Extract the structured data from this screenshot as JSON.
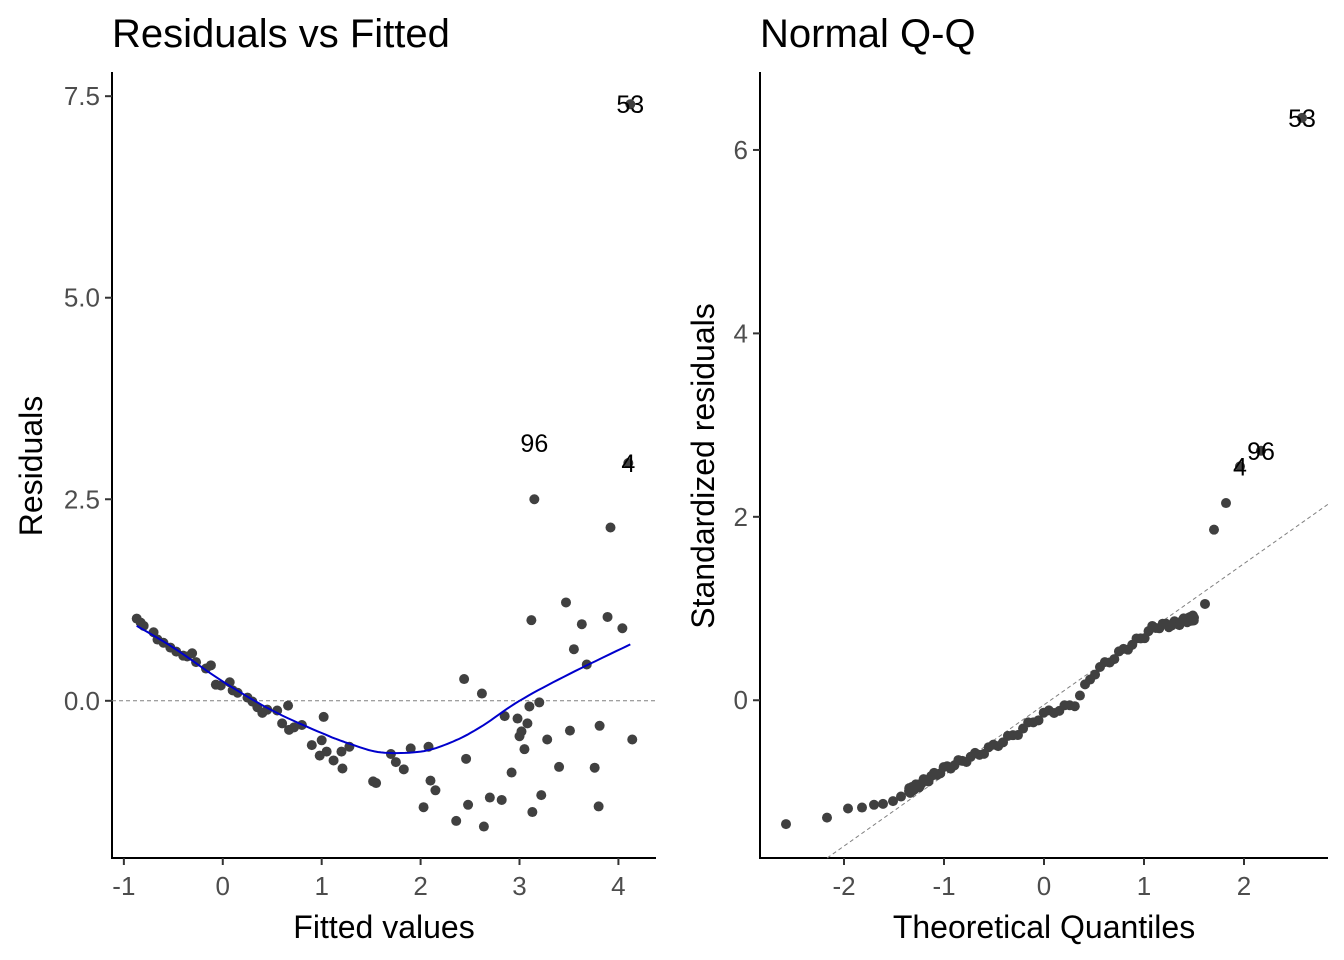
{
  "chart_data": [
    {
      "type": "scatter",
      "title": "Residuals vs Fitted",
      "xlabel": "Fitted values",
      "ylabel": "Residuals",
      "xlim": [
        -1.12,
        4.38
      ],
      "ylim": [
        -1.95,
        7.8
      ],
      "xticks": [
        -1,
        0,
        1,
        2,
        3,
        4
      ],
      "xtick_labels": [
        "-1",
        "0",
        "1",
        "2",
        "3",
        "4"
      ],
      "yticks": [
        0,
        2.5,
        5,
        7.5
      ],
      "ytick_labels": [
        "0.0",
        "2.5",
        "5.0",
        "7.5"
      ],
      "grid": false,
      "reference_line": {
        "y": 0,
        "style": "dashed",
        "color": "#808080"
      },
      "point_color": "#404040",
      "smooth_color": "#0000cc",
      "points": [
        [
          -0.87,
          1.02
        ],
        [
          -0.83,
          0.97
        ],
        [
          -0.8,
          0.93
        ],
        [
          -0.7,
          0.85
        ],
        [
          -0.66,
          0.76
        ],
        [
          -0.6,
          0.72
        ],
        [
          -0.53,
          0.66
        ],
        [
          -0.47,
          0.61
        ],
        [
          -0.4,
          0.56
        ],
        [
          -0.36,
          0.55
        ],
        [
          -0.31,
          0.59
        ],
        [
          -0.27,
          0.48
        ],
        [
          -0.17,
          0.4
        ],
        [
          -0.12,
          0.44
        ],
        [
          -0.07,
          0.2
        ],
        [
          -0.02,
          0.19
        ],
        [
          0.07,
          0.23
        ],
        [
          0.1,
          0.13
        ],
        [
          0.15,
          0.1
        ],
        [
          0.25,
          0.04
        ],
        [
          0.3,
          -0.01
        ],
        [
          0.35,
          -0.08
        ],
        [
          0.4,
          -0.15
        ],
        [
          0.45,
          -0.11
        ],
        [
          0.55,
          -0.12
        ],
        [
          0.6,
          -0.28
        ],
        [
          0.66,
          -0.06
        ],
        [
          0.67,
          -0.36
        ],
        [
          0.72,
          -0.33
        ],
        [
          0.8,
          -0.3
        ],
        [
          0.9,
          -0.55
        ],
        [
          0.98,
          -0.68
        ],
        [
          1.0,
          -0.49
        ],
        [
          1.02,
          -0.2
        ],
        [
          1.05,
          -0.63
        ],
        [
          1.12,
          -0.74
        ],
        [
          1.2,
          -0.63
        ],
        [
          1.21,
          -0.84
        ],
        [
          1.28,
          -0.57
        ],
        [
          1.52,
          -1.0
        ],
        [
          1.55,
          -1.02
        ],
        [
          1.7,
          -0.66
        ],
        [
          1.75,
          -0.76
        ],
        [
          1.83,
          -0.85
        ],
        [
          1.9,
          -0.59
        ],
        [
          2.03,
          -1.32
        ],
        [
          2.08,
          -0.57
        ],
        [
          2.1,
          -0.99
        ],
        [
          2.15,
          -1.11
        ],
        [
          2.36,
          -1.49
        ],
        [
          2.44,
          0.27
        ],
        [
          2.46,
          -0.72
        ],
        [
          2.48,
          -1.29
        ],
        [
          2.62,
          0.09
        ],
        [
          2.64,
          -1.56
        ],
        [
          2.7,
          -1.2
        ],
        [
          2.82,
          -1.23
        ],
        [
          2.85,
          -0.19
        ],
        [
          2.92,
          -0.89
        ],
        [
          2.98,
          -0.22
        ],
        [
          3.0,
          -0.44
        ],
        [
          3.02,
          -0.38
        ],
        [
          3.05,
          -0.6
        ],
        [
          3.08,
          -0.28
        ],
        [
          3.1,
          -0.07
        ],
        [
          3.12,
          1.0
        ],
        [
          3.13,
          -1.38
        ],
        [
          3.15,
          2.5
        ],
        [
          3.2,
          -0.02
        ],
        [
          3.22,
          -1.17
        ],
        [
          3.28,
          -0.48
        ],
        [
          3.4,
          -0.82
        ],
        [
          3.47,
          1.22
        ],
        [
          3.51,
          -0.37
        ],
        [
          3.55,
          0.64
        ],
        [
          3.63,
          0.95
        ],
        [
          3.68,
          0.45
        ],
        [
          3.76,
          -0.83
        ],
        [
          3.8,
          -1.31
        ],
        [
          3.81,
          -0.31
        ],
        [
          3.89,
          1.04
        ],
        [
          3.92,
          2.15
        ],
        [
          4.04,
          0.9
        ],
        [
          4.1,
          2.95
        ],
        [
          4.12,
          7.4
        ],
        [
          4.14,
          -0.48
        ]
      ],
      "smooth": {
        "x": [
          -0.87,
          -0.5,
          0,
          0.5,
          1.0,
          1.3,
          1.6,
          2.0,
          2.3,
          2.6,
          3.0,
          3.5,
          4.12
        ],
        "y": [
          0.93,
          0.66,
          0.24,
          -0.12,
          -0.4,
          -0.54,
          -0.64,
          -0.63,
          -0.52,
          -0.33,
          0.0,
          0.33,
          0.7
        ]
      },
      "labels": [
        {
          "text": "53",
          "x": 4.12,
          "y": 7.4
        },
        {
          "text": "96",
          "x": 3.15,
          "y": 3.2
        },
        {
          "text": "4",
          "x": 4.1,
          "y": 2.95
        }
      ]
    },
    {
      "type": "scatter",
      "title": "Normal Q-Q",
      "xlabel": "Theoretical Quantiles",
      "ylabel": "Standardized residuals",
      "xlim": [
        -2.84,
        2.84
      ],
      "ylim": [
        -1.72,
        6.85
      ],
      "xticks": [
        -2,
        -1,
        0,
        1,
        2
      ],
      "xtick_labels": [
        "-2",
        "-1",
        "0",
        "1",
        "2"
      ],
      "yticks": [
        0,
        2,
        4,
        6
      ],
      "ytick_labels": [
        "0",
        "2",
        "4",
        "6"
      ],
      "grid": false,
      "reference_line": {
        "intercept": -0.05,
        "slope": 0.77,
        "style": "dashed",
        "color": "#808080"
      },
      "point_color": "#404040",
      "qq_points": {
        "x_range": [
          -2.58,
          2.58
        ],
        "n": 100,
        "upper_tail": [
          {
            "x": 1.61,
            "y": 1.05
          },
          {
            "x": 1.7,
            "y": 1.86
          },
          {
            "x": 1.82,
            "y": 2.15
          },
          {
            "x": 1.96,
            "y": 2.55
          },
          {
            "x": 2.17,
            "y": 2.72
          },
          {
            "x": 2.58,
            "y": 6.35
          }
        ],
        "lower_tail": [
          {
            "x": -2.58,
            "y": -1.35
          },
          {
            "x": -2.17,
            "y": -1.28
          },
          {
            "x": -1.96,
            "y": -1.18
          },
          {
            "x": -1.82,
            "y": -1.17
          },
          {
            "x": -1.7,
            "y": -1.14
          },
          {
            "x": -1.61,
            "y": -1.13
          },
          {
            "x": -1.51,
            "y": -1.1
          },
          {
            "x": -1.43,
            "y": -1.05
          }
        ],
        "body_curve": {
          "x": [
            -1.35,
            -1.0,
            -0.6,
            -0.3,
            0.0,
            0.3,
            0.5,
            0.8,
            1.0,
            1.1,
            1.3,
            1.5
          ],
          "y": [
            -0.99,
            -0.75,
            -0.56,
            -0.38,
            -0.15,
            -0.05,
            0.3,
            0.55,
            0.7,
            0.8,
            0.83,
            0.9
          ]
        }
      },
      "labels": [
        {
          "text": "53",
          "x": 2.58,
          "y": 6.35
        },
        {
          "text": "96",
          "x": 2.17,
          "y": 2.72
        },
        {
          "text": "4",
          "x": 1.96,
          "y": 2.55
        }
      ]
    }
  ]
}
